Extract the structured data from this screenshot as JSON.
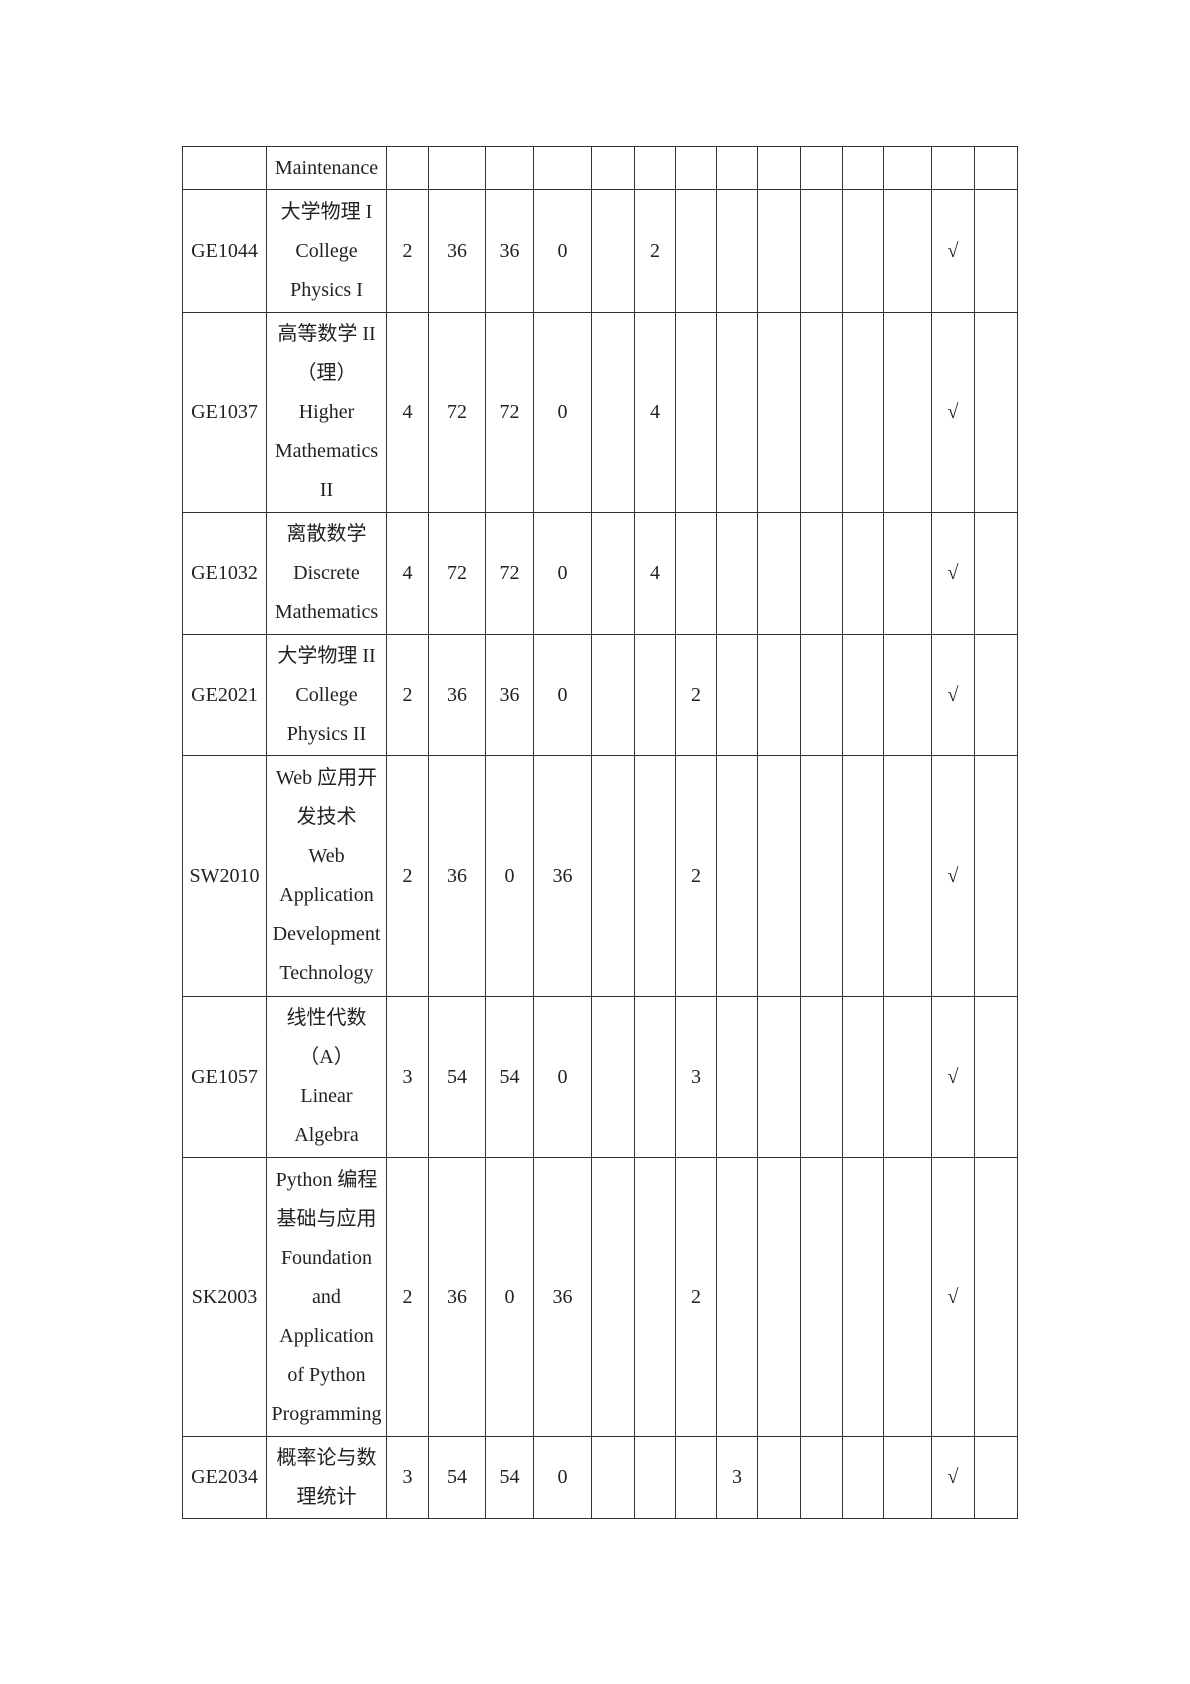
{
  "rows": [
    {
      "code": "",
      "name": [
        "Maintenance"
      ],
      "cells": [
        "",
        "",
        "",
        "",
        "",
        "",
        "",
        "",
        "",
        "",
        "",
        "",
        "",
        ""
      ]
    },
    {
      "code": "GE1044",
      "name": [
        "大学物理 I",
        "College",
        "Physics I"
      ],
      "cells": [
        "2",
        "36",
        "36",
        "0",
        "",
        "2",
        "",
        "",
        "",
        "",
        "",
        "",
        "√",
        ""
      ]
    },
    {
      "code": "GE1037",
      "name": [
        "高等数学 II",
        "（理）",
        "Higher",
        "Mathematics",
        "II"
      ],
      "cells": [
        "4",
        "72",
        "72",
        "0",
        "",
        "4",
        "",
        "",
        "",
        "",
        "",
        "",
        "√",
        ""
      ]
    },
    {
      "code": "GE1032",
      "name": [
        "离散数学",
        "Discrete",
        "Mathematics"
      ],
      "cells": [
        "4",
        "72",
        "72",
        "0",
        "",
        "4",
        "",
        "",
        "",
        "",
        "",
        "",
        "√",
        ""
      ]
    },
    {
      "code": "GE2021",
      "name": [
        "大学物理 II",
        "College",
        "Physics II"
      ],
      "cells": [
        "2",
        "36",
        "36",
        "0",
        "",
        "",
        "2",
        "",
        "",
        "",
        "",
        "",
        "√",
        ""
      ]
    },
    {
      "code": "SW2010",
      "name": [
        "Web 应用开",
        "发技术",
        "Web",
        "Application",
        "Development",
        "Technology"
      ],
      "cells": [
        "2",
        "36",
        "0",
        "36",
        "",
        "",
        "2",
        "",
        "",
        "",
        "",
        "",
        "√",
        ""
      ]
    },
    {
      "code": "GE1057",
      "name": [
        "线性代数",
        "（A）",
        "Linear",
        "Algebra"
      ],
      "cells": [
        "3",
        "54",
        "54",
        "0",
        "",
        "",
        "3",
        "",
        "",
        "",
        "",
        "",
        "√",
        ""
      ]
    },
    {
      "code": "SK2003",
      "name": [
        "Python 编程",
        "基础与应用",
        "Foundation",
        "and",
        "Application",
        "of Python",
        "Programming"
      ],
      "cells": [
        "2",
        "36",
        "0",
        "36",
        "",
        "",
        "2",
        "",
        "",
        "",
        "",
        "",
        "√",
        ""
      ]
    },
    {
      "code": "GE2034",
      "name": [
        "概率论与数",
        "理统计"
      ],
      "cells": [
        "3",
        "54",
        "54",
        "0",
        "",
        "",
        "",
        "3",
        "",
        "",
        "",
        "",
        "√",
        ""
      ]
    }
  ]
}
